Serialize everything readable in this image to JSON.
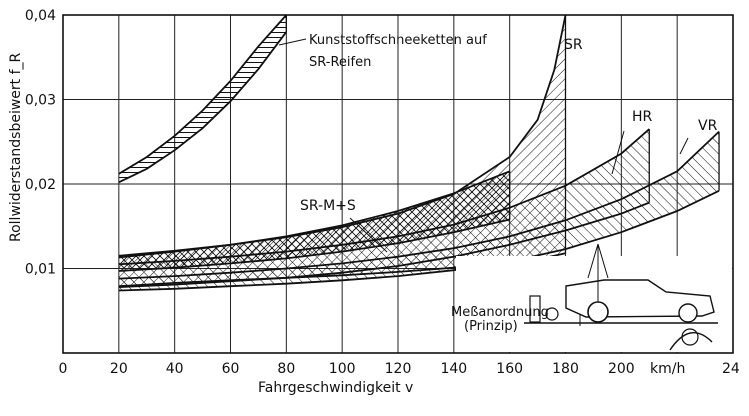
{
  "chart_data": {
    "type": "area",
    "xlabel": "Fahrgeschwindigkeit v",
    "ylabel": "Rollwiderstandsbeiwert f_R",
    "xlim": [
      0,
      240
    ],
    "ylim": [
      0,
      0.04
    ],
    "x_ticks": [
      "0",
      "20",
      "40",
      "60",
      "80",
      "100",
      "120",
      "140",
      "160",
      "180",
      "200"
    ],
    "x_unit_label": "km/h",
    "x_last_tick_cut": "24",
    "y_ticks": [
      "0,01",
      "0,02",
      "0,03",
      "0,04"
    ],
    "grid": true,
    "annotations": {
      "snow": "Kunststoffschneeketten auf",
      "snow2": "SR-Reifen",
      "setup": "Meßanordnung",
      "setup2": "(Prinzip)"
    },
    "series": [
      {
        "name": "Kunststoffschneeketten auf SR-Reifen",
        "x": [
          20,
          30,
          40,
          50,
          60,
          70,
          80
        ],
        "upper": [
          0.0212,
          0.0232,
          0.0257,
          0.0287,
          0.0322,
          0.0363,
          0.041
        ],
        "lower": [
          0.0202,
          0.0218,
          0.024,
          0.0266,
          0.0298,
          0.0336,
          0.038
        ]
      },
      {
        "name": "SR",
        "x": [
          20,
          40,
          60,
          80,
          100,
          120,
          140,
          160,
          170,
          176,
          180
        ],
        "upper": [
          0.0115,
          0.0121,
          0.0128,
          0.0137,
          0.0149,
          0.0165,
          0.0188,
          0.0232,
          0.0276,
          0.0335,
          0.041
        ],
        "lower": [
          0.0079,
          0.0083,
          0.0086,
          0.0089,
          0.0092,
          0.0096,
          0.0101,
          0.0107,
          0.0111,
          0.0115,
          0.0118
        ]
      },
      {
        "name": "SR-M+S",
        "x": [
          20,
          40,
          60,
          80,
          100,
          120,
          140,
          160
        ],
        "upper": [
          0.0113,
          0.012,
          0.0128,
          0.0138,
          0.0151,
          0.0168,
          0.0189,
          0.0215
        ],
        "lower": [
          0.0097,
          0.0101,
          0.0106,
          0.0112,
          0.012,
          0.013,
          0.0143,
          0.0158
        ]
      },
      {
        "name": "HR",
        "x": [
          20,
          40,
          60,
          80,
          100,
          120,
          140,
          160,
          180,
          200,
          210
        ],
        "upper": [
          0.0105,
          0.0109,
          0.0114,
          0.012,
          0.0128,
          0.0138,
          0.0152,
          0.0172,
          0.0198,
          0.0236,
          0.0265
        ],
        "lower": [
          0.0078,
          0.0081,
          0.0085,
          0.0089,
          0.0095,
          0.0103,
          0.0114,
          0.0128,
          0.0145,
          0.0165,
          0.0178
        ]
      },
      {
        "name": "VR",
        "x": [
          20,
          40,
          60,
          80,
          100,
          120,
          140,
          160,
          180,
          200,
          220,
          235
        ],
        "upper": [
          0.0088,
          0.0091,
          0.0095,
          0.01,
          0.0106,
          0.0114,
          0.0124,
          0.0138,
          0.0157,
          0.0182,
          0.0215,
          0.0262
        ],
        "lower": [
          0.0074,
          0.0076,
          0.0079,
          0.0082,
          0.0086,
          0.0091,
          0.0098,
          0.0108,
          0.0123,
          0.0143,
          0.0168,
          0.0192
        ]
      }
    ]
  },
  "colors": {
    "ink": "#111111",
    "grid": "#222222",
    "background": "#ffffff"
  }
}
